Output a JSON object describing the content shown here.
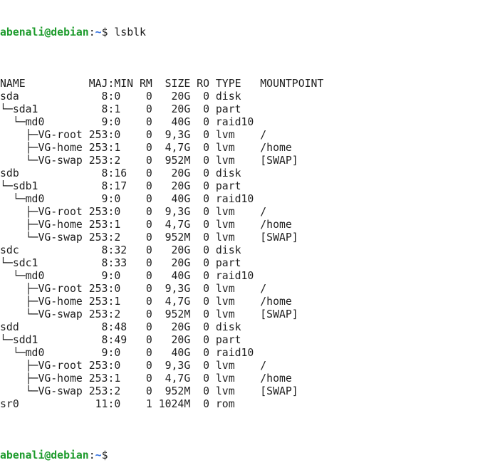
{
  "prompt": {
    "user_host": "abenali@debian",
    "separator": ":",
    "path": "~",
    "symbol": "$ "
  },
  "command": "lsblk",
  "output_lines": [
    "NAME          MAJ:MIN RM  SIZE RO TYPE   MOUNTPOINT",
    "sda             8:0    0   20G  0 disk",
    "└─sda1          8:1    0   20G  0 part",
    "  └─md0         9:0    0   40G  0 raid10",
    "    ├─VG-root 253:0    0  9,3G  0 lvm    /",
    "    ├─VG-home 253:1    0  4,7G  0 lvm    /home",
    "    └─VG-swap 253:2    0  952M  0 lvm    [SWAP]",
    "sdb             8:16   0   20G  0 disk",
    "└─sdb1          8:17   0   20G  0 part",
    "  └─md0         9:0    0   40G  0 raid10",
    "    ├─VG-root 253:0    0  9,3G  0 lvm    /",
    "    ├─VG-home 253:1    0  4,7G  0 lvm    /home",
    "    └─VG-swap 253:2    0  952M  0 lvm    [SWAP]",
    "sdc             8:32   0   20G  0 disk",
    "└─sdc1          8:33   0   20G  0 part",
    "  └─md0         9:0    0   40G  0 raid10",
    "    ├─VG-root 253:0    0  9,3G  0 lvm    /",
    "    ├─VG-home 253:1    0  4,7G  0 lvm    /home",
    "    └─VG-swap 253:2    0  952M  0 lvm    [SWAP]",
    "sdd             8:48   0   20G  0 disk",
    "└─sdd1          8:49   0   20G  0 part",
    "  └─md0         9:0    0   40G  0 raid10",
    "    ├─VG-root 253:0    0  9,3G  0 lvm    /",
    "    ├─VG-home 253:1    0  4,7G  0 lvm    /home",
    "    └─VG-swap 253:2    0  952M  0 lvm    [SWAP]",
    "sr0            11:0    1 1024M  0 rom"
  ],
  "colors": {
    "prompt_user": "#1d9b2c",
    "prompt_path": "#2f6ee0",
    "text": "#1e1e1e",
    "background": "#ffffff"
  }
}
